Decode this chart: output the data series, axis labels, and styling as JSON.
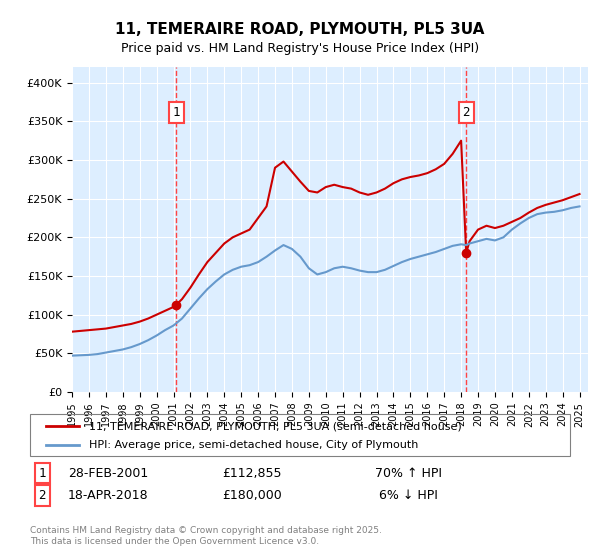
{
  "title": "11, TEMERAIRE ROAD, PLYMOUTH, PL5 3UA",
  "subtitle": "Price paid vs. HM Land Registry's House Price Index (HPI)",
  "legend_line1": "11, TEMERAIRE ROAD, PLYMOUTH, PL5 3UA (semi-detached house)",
  "legend_line2": "HPI: Average price, semi-detached house, City of Plymouth",
  "footnote": "Contains HM Land Registry data © Crown copyright and database right 2025.\nThis data is licensed under the Open Government Licence v3.0.",
  "transaction1": {
    "label": "1",
    "date": "28-FEB-2001",
    "price": 112855,
    "hpi_rel": "70% ↑ HPI"
  },
  "transaction2": {
    "label": "2",
    "date": "18-APR-2018",
    "price": 180000,
    "hpi_rel": "6% ↓ HPI"
  },
  "red_line_color": "#cc0000",
  "blue_line_color": "#6699cc",
  "vline_color": "#ff4444",
  "background_color": "#ddeeff",
  "plot_bg_color": "#ddeeff",
  "ylim": [
    0,
    420000
  ],
  "xlim_start": 1995.0,
  "xlim_end": 2025.5,
  "transaction1_x": 2001.16,
  "transaction2_x": 2018.3,
  "red_data": {
    "x": [
      1995.0,
      1995.5,
      1996.0,
      1996.5,
      1997.0,
      1997.5,
      1998.0,
      1998.5,
      1999.0,
      1999.5,
      2000.0,
      2000.5,
      2001.0,
      2001.16,
      2001.5,
      2002.0,
      2002.5,
      2003.0,
      2003.5,
      2004.0,
      2004.5,
      2005.0,
      2005.5,
      2006.0,
      2006.5,
      2007.0,
      2007.5,
      2008.0,
      2008.5,
      2009.0,
      2009.5,
      2010.0,
      2010.5,
      2011.0,
      2011.5,
      2012.0,
      2012.5,
      2013.0,
      2013.5,
      2014.0,
      2014.5,
      2015.0,
      2015.5,
      2016.0,
      2016.5,
      2017.0,
      2017.5,
      2018.0,
      2018.3,
      2018.5,
      2019.0,
      2019.5,
      2020.0,
      2020.5,
      2021.0,
      2021.5,
      2022.0,
      2022.5,
      2023.0,
      2023.5,
      2024.0,
      2024.5,
      2025.0
    ],
    "y": [
      78000,
      79000,
      80000,
      81000,
      82000,
      84000,
      86000,
      88000,
      91000,
      95000,
      100000,
      105000,
      110000,
      112855,
      120000,
      135000,
      152000,
      168000,
      180000,
      192000,
      200000,
      205000,
      210000,
      225000,
      240000,
      290000,
      298000,
      285000,
      272000,
      260000,
      258000,
      265000,
      268000,
      265000,
      263000,
      258000,
      255000,
      258000,
      263000,
      270000,
      275000,
      278000,
      280000,
      283000,
      288000,
      295000,
      308000,
      325000,
      180000,
      195000,
      210000,
      215000,
      212000,
      215000,
      220000,
      225000,
      232000,
      238000,
      242000,
      245000,
      248000,
      252000,
      256000
    ]
  },
  "blue_data": {
    "x": [
      1995.0,
      1995.5,
      1996.0,
      1996.5,
      1997.0,
      1997.5,
      1998.0,
      1998.5,
      1999.0,
      1999.5,
      2000.0,
      2000.5,
      2001.0,
      2001.5,
      2002.0,
      2002.5,
      2003.0,
      2003.5,
      2004.0,
      2004.5,
      2005.0,
      2005.5,
      2006.0,
      2006.5,
      2007.0,
      2007.5,
      2008.0,
      2008.5,
      2009.0,
      2009.5,
      2010.0,
      2010.5,
      2011.0,
      2011.5,
      2012.0,
      2012.5,
      2013.0,
      2013.5,
      2014.0,
      2014.5,
      2015.0,
      2015.5,
      2016.0,
      2016.5,
      2017.0,
      2017.5,
      2018.0,
      2018.3,
      2018.5,
      2019.0,
      2019.5,
      2020.0,
      2020.5,
      2021.0,
      2021.5,
      2022.0,
      2022.5,
      2023.0,
      2023.5,
      2024.0,
      2024.5,
      2025.0
    ],
    "y": [
      47000,
      47500,
      48000,
      49000,
      51000,
      53000,
      55000,
      58000,
      62000,
      67000,
      73000,
      80000,
      86000,
      95000,
      108000,
      121000,
      133000,
      143000,
      152000,
      158000,
      162000,
      164000,
      168000,
      175000,
      183000,
      190000,
      185000,
      175000,
      160000,
      152000,
      155000,
      160000,
      162000,
      160000,
      157000,
      155000,
      155000,
      158000,
      163000,
      168000,
      172000,
      175000,
      178000,
      181000,
      185000,
      189000,
      191000,
      190000,
      192000,
      195000,
      198000,
      196000,
      200000,
      210000,
      218000,
      225000,
      230000,
      232000,
      233000,
      235000,
      238000,
      240000
    ]
  }
}
